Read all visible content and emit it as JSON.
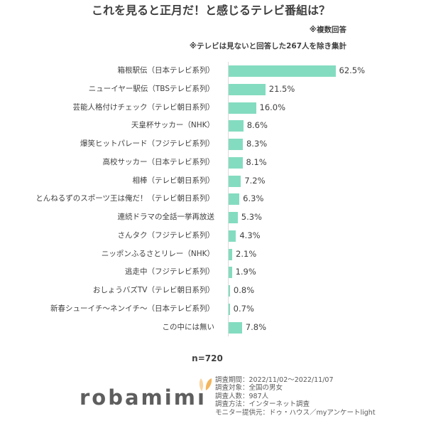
{
  "header": {
    "title": "これを見ると正月だ！と感じるテレビ番組は？",
    "note_multiple": "※複数回答",
    "note_excluded": "※テレビは見ないと回答した267人を除き集計"
  },
  "chart_data": {
    "type": "bar",
    "orientation": "horizontal",
    "title": "これを見ると正月だ！と感じるテレビ番組は？",
    "subtitle": "※複数回答 / ※テレビは見ないと回答した267人を除き集計",
    "xlabel": "",
    "ylabel": "",
    "unit": "%",
    "grid": false,
    "legend": null,
    "xlim": [
      0,
      62.5
    ],
    "bar_color": "#84dcc0",
    "categories": [
      "箱根駅伝（日本テレビ系列）",
      "ニューイヤー駅伝（TBSテレビ系列）",
      "芸能人格付けチェック（テレビ朝日系列）",
      "天皇杯サッカー（NHK）",
      "爆笑ヒットパレード（フジテレビ系列）",
      "高校サッカー（日本テレビ系列）",
      "相棒（テレビ朝日系列）",
      "とんねるずのスポーツ王は俺だ！（テレビ朝日系列）",
      "連続ドラマの全話一挙再放送",
      "さんタク（フジテレビ系列）",
      "ニッポンふるさとリレー（NHK）",
      "逃走中（フジテレビ系列）",
      "おしょうバズTV（テレビ朝日系列）",
      "新春シューイチ～ネンイチ～（日本テレビ系列）",
      "この中には無い"
    ],
    "values": [
      62.5,
      21.5,
      16.0,
      8.6,
      8.3,
      8.1,
      7.2,
      6.3,
      5.3,
      4.3,
      2.1,
      1.9,
      0.8,
      0.7,
      7.8
    ],
    "value_labels": [
      "62.5%",
      "21.5%",
      "16.0%",
      "8.6%",
      "8.3%",
      "8.1%",
      "7.2%",
      "6.3%",
      "5.3%",
      "4.3%",
      "2.1%",
      "1.9%",
      "0.8%",
      "0.7%",
      "7.8%"
    ],
    "sample_size": "n=720"
  },
  "footer": {
    "n_label": "n=720",
    "logo_text": "robamim",
    "logo_last_letter": "ı",
    "logo_ear_colors": [
      "#f7d4a2",
      "#f2b55e"
    ],
    "survey": [
      "調査期間：2022/11/02～2022/11/07",
      "調査対象：全国の男女",
      "調査人数：987人",
      "調査方法：インターネット調査",
      "モニター提供元：ドゥ・ハウス／myアンケートlight"
    ]
  }
}
